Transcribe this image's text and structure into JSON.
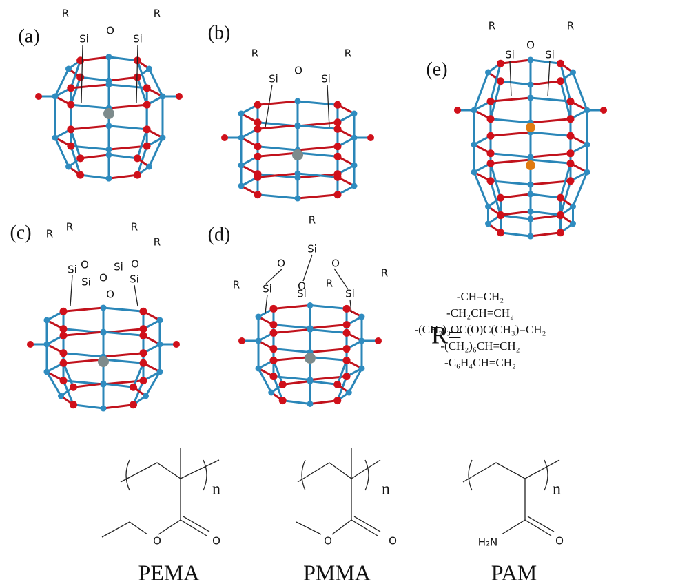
{
  "panels": [
    {
      "label": "(a)",
      "atoms": [
        "R",
        "R",
        "Si",
        "O",
        "Si"
      ]
    },
    {
      "label": "(b)",
      "atoms": [
        "R",
        "R",
        "Si",
        "O",
        "Si"
      ]
    },
    {
      "label": "(e)",
      "atoms": [
        "R",
        "R",
        "Si",
        "O",
        "Si"
      ]
    },
    {
      "label": "(c)",
      "atoms": [
        "R",
        "R",
        "R",
        "R",
        "Si",
        "O",
        "Si",
        "O",
        "Si",
        "O",
        "Si",
        "O"
      ]
    },
    {
      "label": "(d)",
      "atoms": [
        "R",
        "Si",
        "O",
        "O",
        "O",
        "R",
        "Si",
        "Si",
        "R",
        "Si",
        "R"
      ]
    }
  ],
  "r_group": {
    "label": "R=",
    "items": [
      "-CH=CH₂",
      "-CH₂CH=CH₂",
      "-(CH₂)₃OC(O)C(CH₃)=CH₂",
      "-(CH₂)₆CH=CH₂",
      "-C₆H₄CH=CH₂"
    ]
  },
  "polymers": [
    {
      "name": "PEMA",
      "repeat": "n",
      "atoms": [
        "O",
        "O"
      ]
    },
    {
      "name": "PMMA",
      "repeat": "n",
      "atoms": [
        "O",
        "O"
      ]
    },
    {
      "name": "PAM",
      "repeat": "n",
      "atoms": [
        "H₂N",
        "O"
      ]
    }
  ]
}
